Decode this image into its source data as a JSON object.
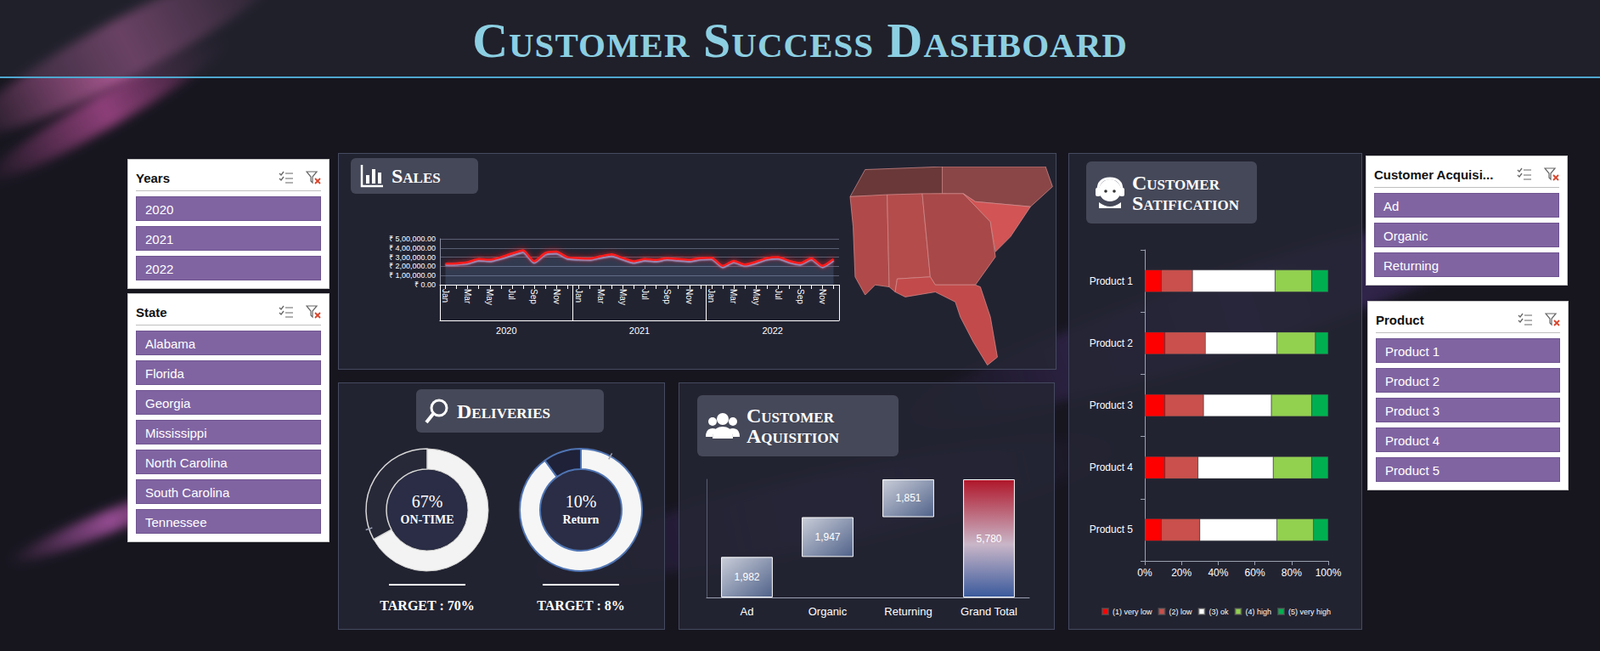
{
  "title": "Customer Success Dashboard",
  "slicers": [
    {
      "title": "Years",
      "items": [
        "2020",
        "2021",
        "2022"
      ]
    },
    {
      "title": "State",
      "items": [
        "Alabama",
        "Florida",
        "Georgia",
        "Mississippi",
        "North Carolina",
        "South Carolina",
        "Tennessee"
      ]
    },
    {
      "title": "Customer Acquisi...",
      "items": [
        "Ad",
        "Organic",
        "Returning"
      ]
    },
    {
      "title": "Product",
      "items": [
        "Product 1",
        "Product 2",
        "Product 3",
        "Product 4",
        "Product 5"
      ]
    }
  ],
  "chart_data": [
    {
      "type": "line",
      "title": "Sales",
      "categories": [
        "Jan",
        null,
        "Mar",
        null,
        "May",
        null,
        "Jul",
        null,
        "Sep",
        null,
        "Nov",
        null,
        "Jan",
        null,
        "Mar",
        null,
        "May",
        null,
        "Jul",
        null,
        "Sep",
        null,
        "Nov",
        null,
        "Jan",
        null,
        "Mar",
        null,
        "May",
        null,
        "Jul",
        null,
        "Sep",
        null,
        "Nov",
        null
      ],
      "x_groups": [
        "2020",
        "2021",
        "2022"
      ],
      "series": [
        {
          "color": "#ff1a1a",
          "values": [
            230000,
            232000,
            245000,
            280000,
            272000,
            300000,
            340000,
            375000,
            255000,
            345000,
            360000,
            300000,
            290000,
            285000,
            310000,
            330000,
            290000,
            255000,
            280000,
            270000,
            290000,
            280000,
            270000,
            290000,
            295000,
            205000,
            260000,
            220000,
            250000,
            290000,
            300000,
            260000,
            235000,
            290000,
            205000,
            280000
          ]
        },
        {
          "color": "#7fa6e0",
          "values": [
            215000,
            218000,
            228000,
            262000,
            255000,
            282000,
            318000,
            352000,
            238000,
            325000,
            338000,
            282000,
            272000,
            268000,
            292000,
            310000,
            272000,
            238000,
            262000,
            252000,
            272000,
            262000,
            252000,
            272000,
            278000,
            190000,
            242000,
            205000,
            232000,
            272000,
            282000,
            242000,
            218000,
            272000,
            190000,
            262000
          ]
        }
      ],
      "ylim": [
        0,
        500000
      ],
      "yticks": [
        {
          "value": 0,
          "label": "₹ 0.00"
        },
        {
          "value": 100000,
          "label": "₹ 1,00,000.00"
        },
        {
          "value": 200000,
          "label": "₹ 2,00,000.00"
        },
        {
          "value": 300000,
          "label": "₹ 3,00,000.00"
        },
        {
          "value": 400000,
          "label": "₹ 4,00,000.00"
        },
        {
          "value": 500000,
          "label": "₹ 5,00,000.00"
        }
      ],
      "grid": true
    },
    {
      "type": "donut",
      "title": "Deliveries",
      "categories": [
        "ON-TIME",
        "Return"
      ],
      "values": [
        67,
        10
      ],
      "value_labels": [
        "67%",
        "10%"
      ],
      "targets": [
        {
          "value": 70,
          "label": "TARGET : 70%"
        },
        {
          "value": 8,
          "label": "TARGET : 8%"
        }
      ]
    },
    {
      "type": "waterfall",
      "title": "Customer Aquisition",
      "categories": [
        "Ad",
        "Organic",
        "Returning",
        "Grand Total"
      ],
      "values": [
        1982,
        1947,
        1851,
        5780
      ],
      "value_labels": [
        "1,982",
        "1,947",
        "1,851",
        "5,780"
      ],
      "is_total": [
        false,
        false,
        false,
        true
      ],
      "ylim": [
        0,
        5780
      ],
      "tick_labels": "x",
      "data_labels": true
    },
    {
      "type": "bar",
      "title": "Customer Satification",
      "orientation": "horizontal",
      "stacked": true,
      "categories": [
        "Product 1",
        "Product 2",
        "Product 3",
        "Product 4",
        "Product 5"
      ],
      "series": [
        {
          "name": "(1) very low",
          "color": "#ff0000",
          "values": [
            9,
            11,
            11,
            11,
            9
          ]
        },
        {
          "name": "(2) low",
          "color": "#c9504c",
          "values": [
            17,
            22,
            21,
            18,
            21
          ]
        },
        {
          "name": "(3) ok",
          "color": "#ffffff",
          "values": [
            45,
            39,
            37,
            41,
            42
          ]
        },
        {
          "name": "(4) high",
          "color": "#92d050",
          "values": [
            20,
            21,
            22,
            21,
            20
          ]
        },
        {
          "name": "(5) very high",
          "color": "#00b050",
          "values": [
            9,
            7,
            9,
            9,
            8
          ]
        }
      ],
      "xlim": [
        0,
        100
      ],
      "xticks": [
        {
          "value": 0,
          "label": "0%"
        },
        {
          "value": 20,
          "label": "20%"
        },
        {
          "value": 40,
          "label": "40%"
        },
        {
          "value": 60,
          "label": "60%"
        },
        {
          "value": 80,
          "label": "80%"
        },
        {
          "value": 100,
          "label": "100%"
        }
      ],
      "grid": false,
      "legend": "bottom"
    }
  ]
}
